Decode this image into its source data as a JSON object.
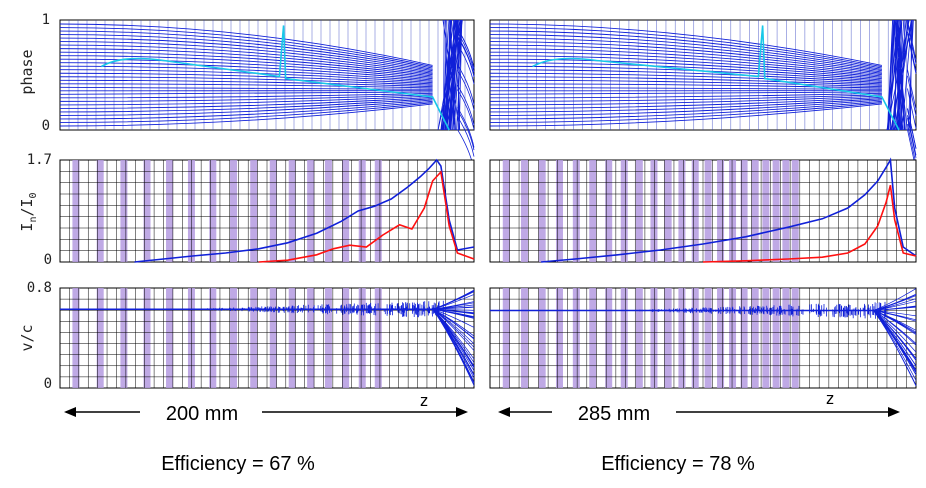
{
  "chart_data": {
    "type": "line",
    "description_rows": [
      "phase",
      "In/I0",
      "v/c"
    ],
    "row_labels": {
      "phase": "phase",
      "current_main": "I",
      "current_sub_n": "n",
      "current_slash": "/I",
      "current_sub_0": "0",
      "velocity": "v/c"
    },
    "y_ticks": {
      "phase": [
        "1",
        "0"
      ],
      "current": [
        "1.7",
        "0"
      ],
      "velocity": [
        "0.8",
        "0"
      ]
    },
    "y_ranges": {
      "phase": [
        0,
        1
      ],
      "current": [
        0,
        1.7
      ],
      "velocity": [
        0,
        0.8
      ]
    },
    "z_label": "z",
    "panels": [
      {
        "length_label": "200 mm",
        "efficiency_label": "Efficiency = 67 %",
        "current_blue": {
          "x": [
            0.18,
            0.25,
            0.32,
            0.4,
            0.48,
            0.55,
            0.62,
            0.68,
            0.72,
            0.76,
            0.8,
            0.84,
            0.87,
            0.89,
            0.91,
            0.92,
            0.94,
            0.96,
            1.0
          ],
          "y": [
            0.0,
            0.05,
            0.1,
            0.15,
            0.22,
            0.32,
            0.48,
            0.68,
            0.85,
            0.93,
            1.05,
            1.25,
            1.42,
            1.55,
            1.7,
            1.6,
            0.7,
            0.2,
            0.25
          ]
        },
        "current_red": {
          "x": [
            0.48,
            0.55,
            0.62,
            0.66,
            0.7,
            0.74,
            0.78,
            0.82,
            0.85,
            0.88,
            0.9,
            0.92,
            0.94,
            0.96,
            0.98,
            1.0
          ],
          "y": [
            0.0,
            0.03,
            0.12,
            0.22,
            0.28,
            0.25,
            0.45,
            0.62,
            0.55,
            0.9,
            1.35,
            1.5,
            0.6,
            0.15,
            0.1,
            0.05
          ]
        },
        "velocity_level": 0.63,
        "phase_spike_x": 0.54,
        "phase_break_x": 0.94
      },
      {
        "length_label": "285 mm",
        "efficiency_label": "Efficiency = 78 %",
        "current_blue": {
          "x": [
            0.12,
            0.2,
            0.3,
            0.4,
            0.5,
            0.6,
            0.7,
            0.78,
            0.84,
            0.88,
            0.91,
            0.93,
            0.94,
            0.95,
            0.97,
            1.0
          ],
          "y": [
            0.0,
            0.05,
            0.12,
            0.2,
            0.3,
            0.42,
            0.58,
            0.72,
            0.9,
            1.12,
            1.35,
            1.58,
            1.7,
            0.9,
            0.25,
            0.1
          ]
        },
        "current_red": {
          "x": [
            0.5,
            0.6,
            0.7,
            0.78,
            0.84,
            0.88,
            0.91,
            0.93,
            0.94,
            0.95,
            0.97,
            1.0
          ],
          "y": [
            0.0,
            0.02,
            0.05,
            0.08,
            0.15,
            0.3,
            0.6,
            1.0,
            1.28,
            0.7,
            0.15,
            0.1
          ]
        },
        "velocity_level": 0.62,
        "phase_spike_x": 0.64,
        "phase_break_x": 0.96
      }
    ],
    "colors": {
      "blue": "#1020d8",
      "red": "#ff1010",
      "cyan": "#18c8e8",
      "band": "#b49ae0",
      "grid": "#000000"
    }
  }
}
